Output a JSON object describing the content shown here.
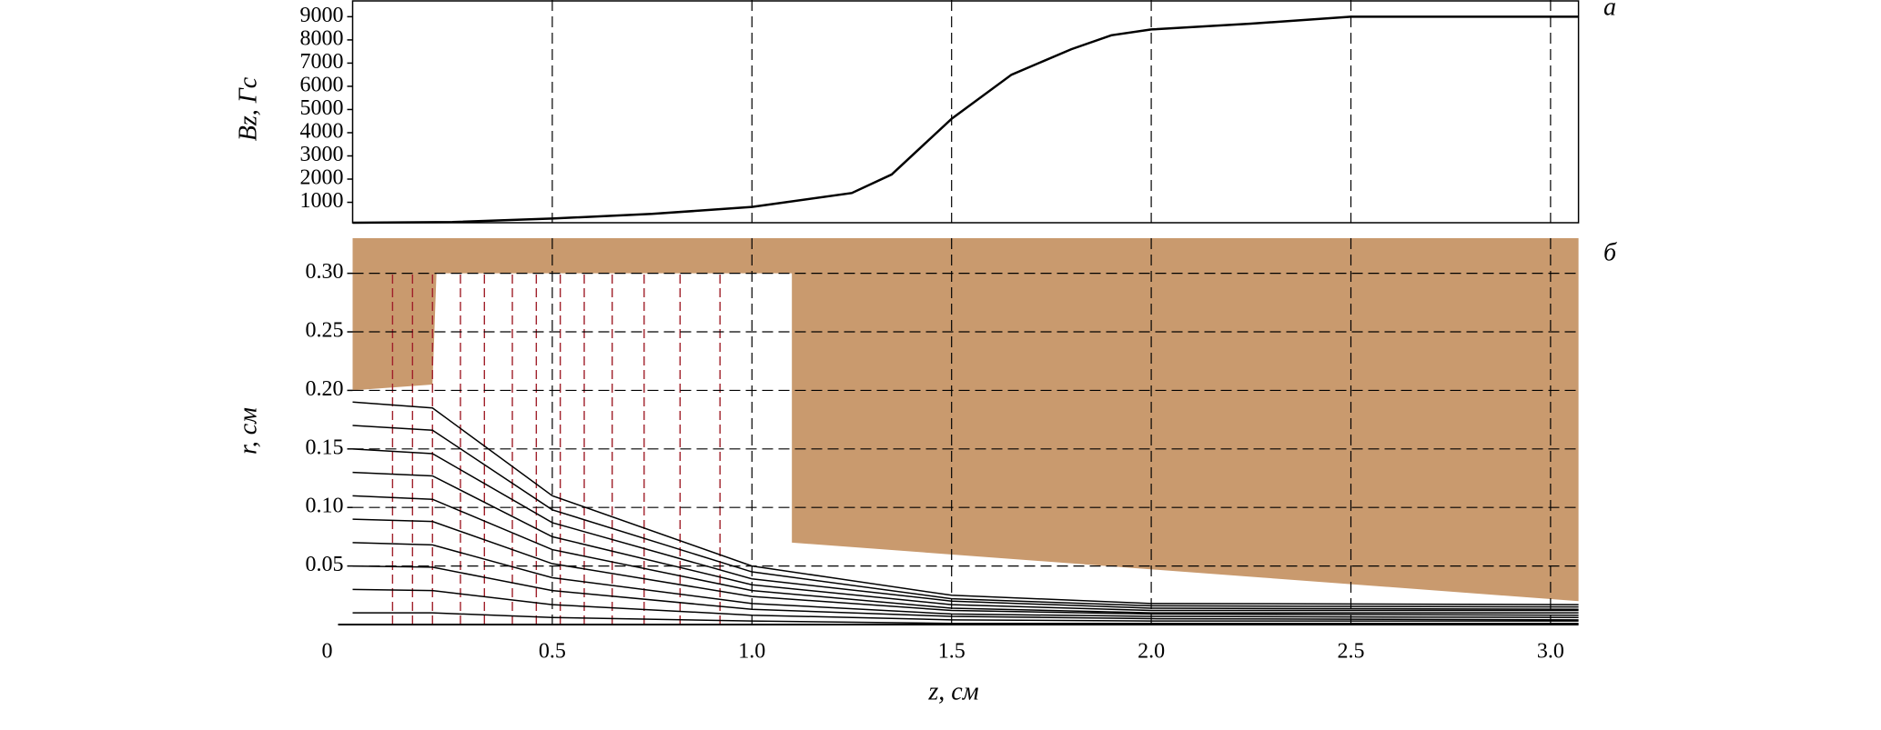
{
  "chart_data": [
    {
      "type": "line",
      "panel_label": "a",
      "ylabel": "Bz, Гс",
      "color": "#000000",
      "x": [
        0,
        0.25,
        0.5,
        0.75,
        1.0,
        1.25,
        1.35,
        1.5,
        1.65,
        1.8,
        1.9,
        2.0,
        2.25,
        2.5,
        3.07
      ],
      "values": [
        120,
        150,
        300,
        500,
        800,
        1400,
        2200,
        4600,
        6500,
        7600,
        8200,
        8450,
        8700,
        9000,
        9000
      ],
      "xlim": [
        0,
        3.07
      ],
      "ylim": [
        120,
        9720
      ],
      "xticks": [
        0.5,
        1,
        1.5,
        2,
        2.5,
        3
      ],
      "yticks": [
        1000,
        2000,
        3000,
        4000,
        5000,
        6000,
        7000,
        8000,
        9000
      ],
      "grid": true
    },
    {
      "type": "trajectory",
      "panel_label": "б",
      "xlabel": "z, см",
      "ylabel": "r, см",
      "xlim": [
        0,
        3.07
      ],
      "ylim": [
        0,
        0.33
      ],
      "xticks": [
        0,
        0.5,
        {
          "value": 1,
          "label": "1.0"
        },
        1.5,
        {
          "value": 2,
          "label": "2.0"
        },
        2.5,
        {
          "value": 3,
          "label": "3.0"
        }
      ],
      "yticks": [
        0.05,
        {
          "value": 0.1,
          "label": "0.10"
        },
        0.15,
        {
          "value": 0.2,
          "label": "0.20"
        },
        0.25,
        {
          "value": 0.3,
          "label": "0.30"
        }
      ],
      "grid": true,
      "electrode": {
        "color": "#c99a6e",
        "z": [
          0,
          0,
          0.2,
          0.21,
          1.1,
          1.1,
          3.07,
          3.07
        ],
        "r": [
          0.33,
          0.2,
          0.205,
          0.3,
          0.3,
          0.07,
          0.02,
          0.33
        ]
      },
      "equipotential_color": "#a0202a",
      "equipotentials": [
        0.1,
        0.15,
        0.2,
        0.27,
        0.33,
        0.4,
        0.46,
        0.52,
        0.58,
        0.65,
        0.73,
        0.82,
        0.92
      ],
      "equipotential_top": 0.3,
      "color": "#000000",
      "z": [
        0,
        0.2,
        0.5,
        1.0,
        1.5,
        2.0,
        3.07
      ],
      "series": [
        {
          "values": [
            0.19,
            0.185,
            0.11,
            0.05,
            0.025,
            0.018,
            0.017
          ]
        },
        {
          "values": [
            0.17,
            0.166,
            0.098,
            0.045,
            0.022,
            0.016,
            0.015
          ]
        },
        {
          "values": [
            0.15,
            0.146,
            0.087,
            0.039,
            0.02,
            0.014,
            0.013
          ]
        },
        {
          "values": [
            0.13,
            0.127,
            0.075,
            0.034,
            0.017,
            0.012,
            0.012
          ]
        },
        {
          "values": [
            0.11,
            0.107,
            0.064,
            0.029,
            0.014,
            0.01,
            0.01
          ]
        },
        {
          "values": [
            0.09,
            0.088,
            0.052,
            0.024,
            0.012,
            0.009,
            0.008
          ]
        },
        {
          "values": [
            0.07,
            0.068,
            0.04,
            0.018,
            0.009,
            0.007,
            0.006
          ]
        },
        {
          "values": [
            0.05,
            0.049,
            0.029,
            0.013,
            0.007,
            0.005,
            0.004
          ]
        },
        {
          "values": [
            0.03,
            0.029,
            0.017,
            0.008,
            0.004,
            0.003,
            0.003
          ]
        },
        {
          "values": [
            0.01,
            0.01,
            0.006,
            0.003,
            0.001,
            0.001,
            0.001
          ]
        }
      ]
    }
  ]
}
